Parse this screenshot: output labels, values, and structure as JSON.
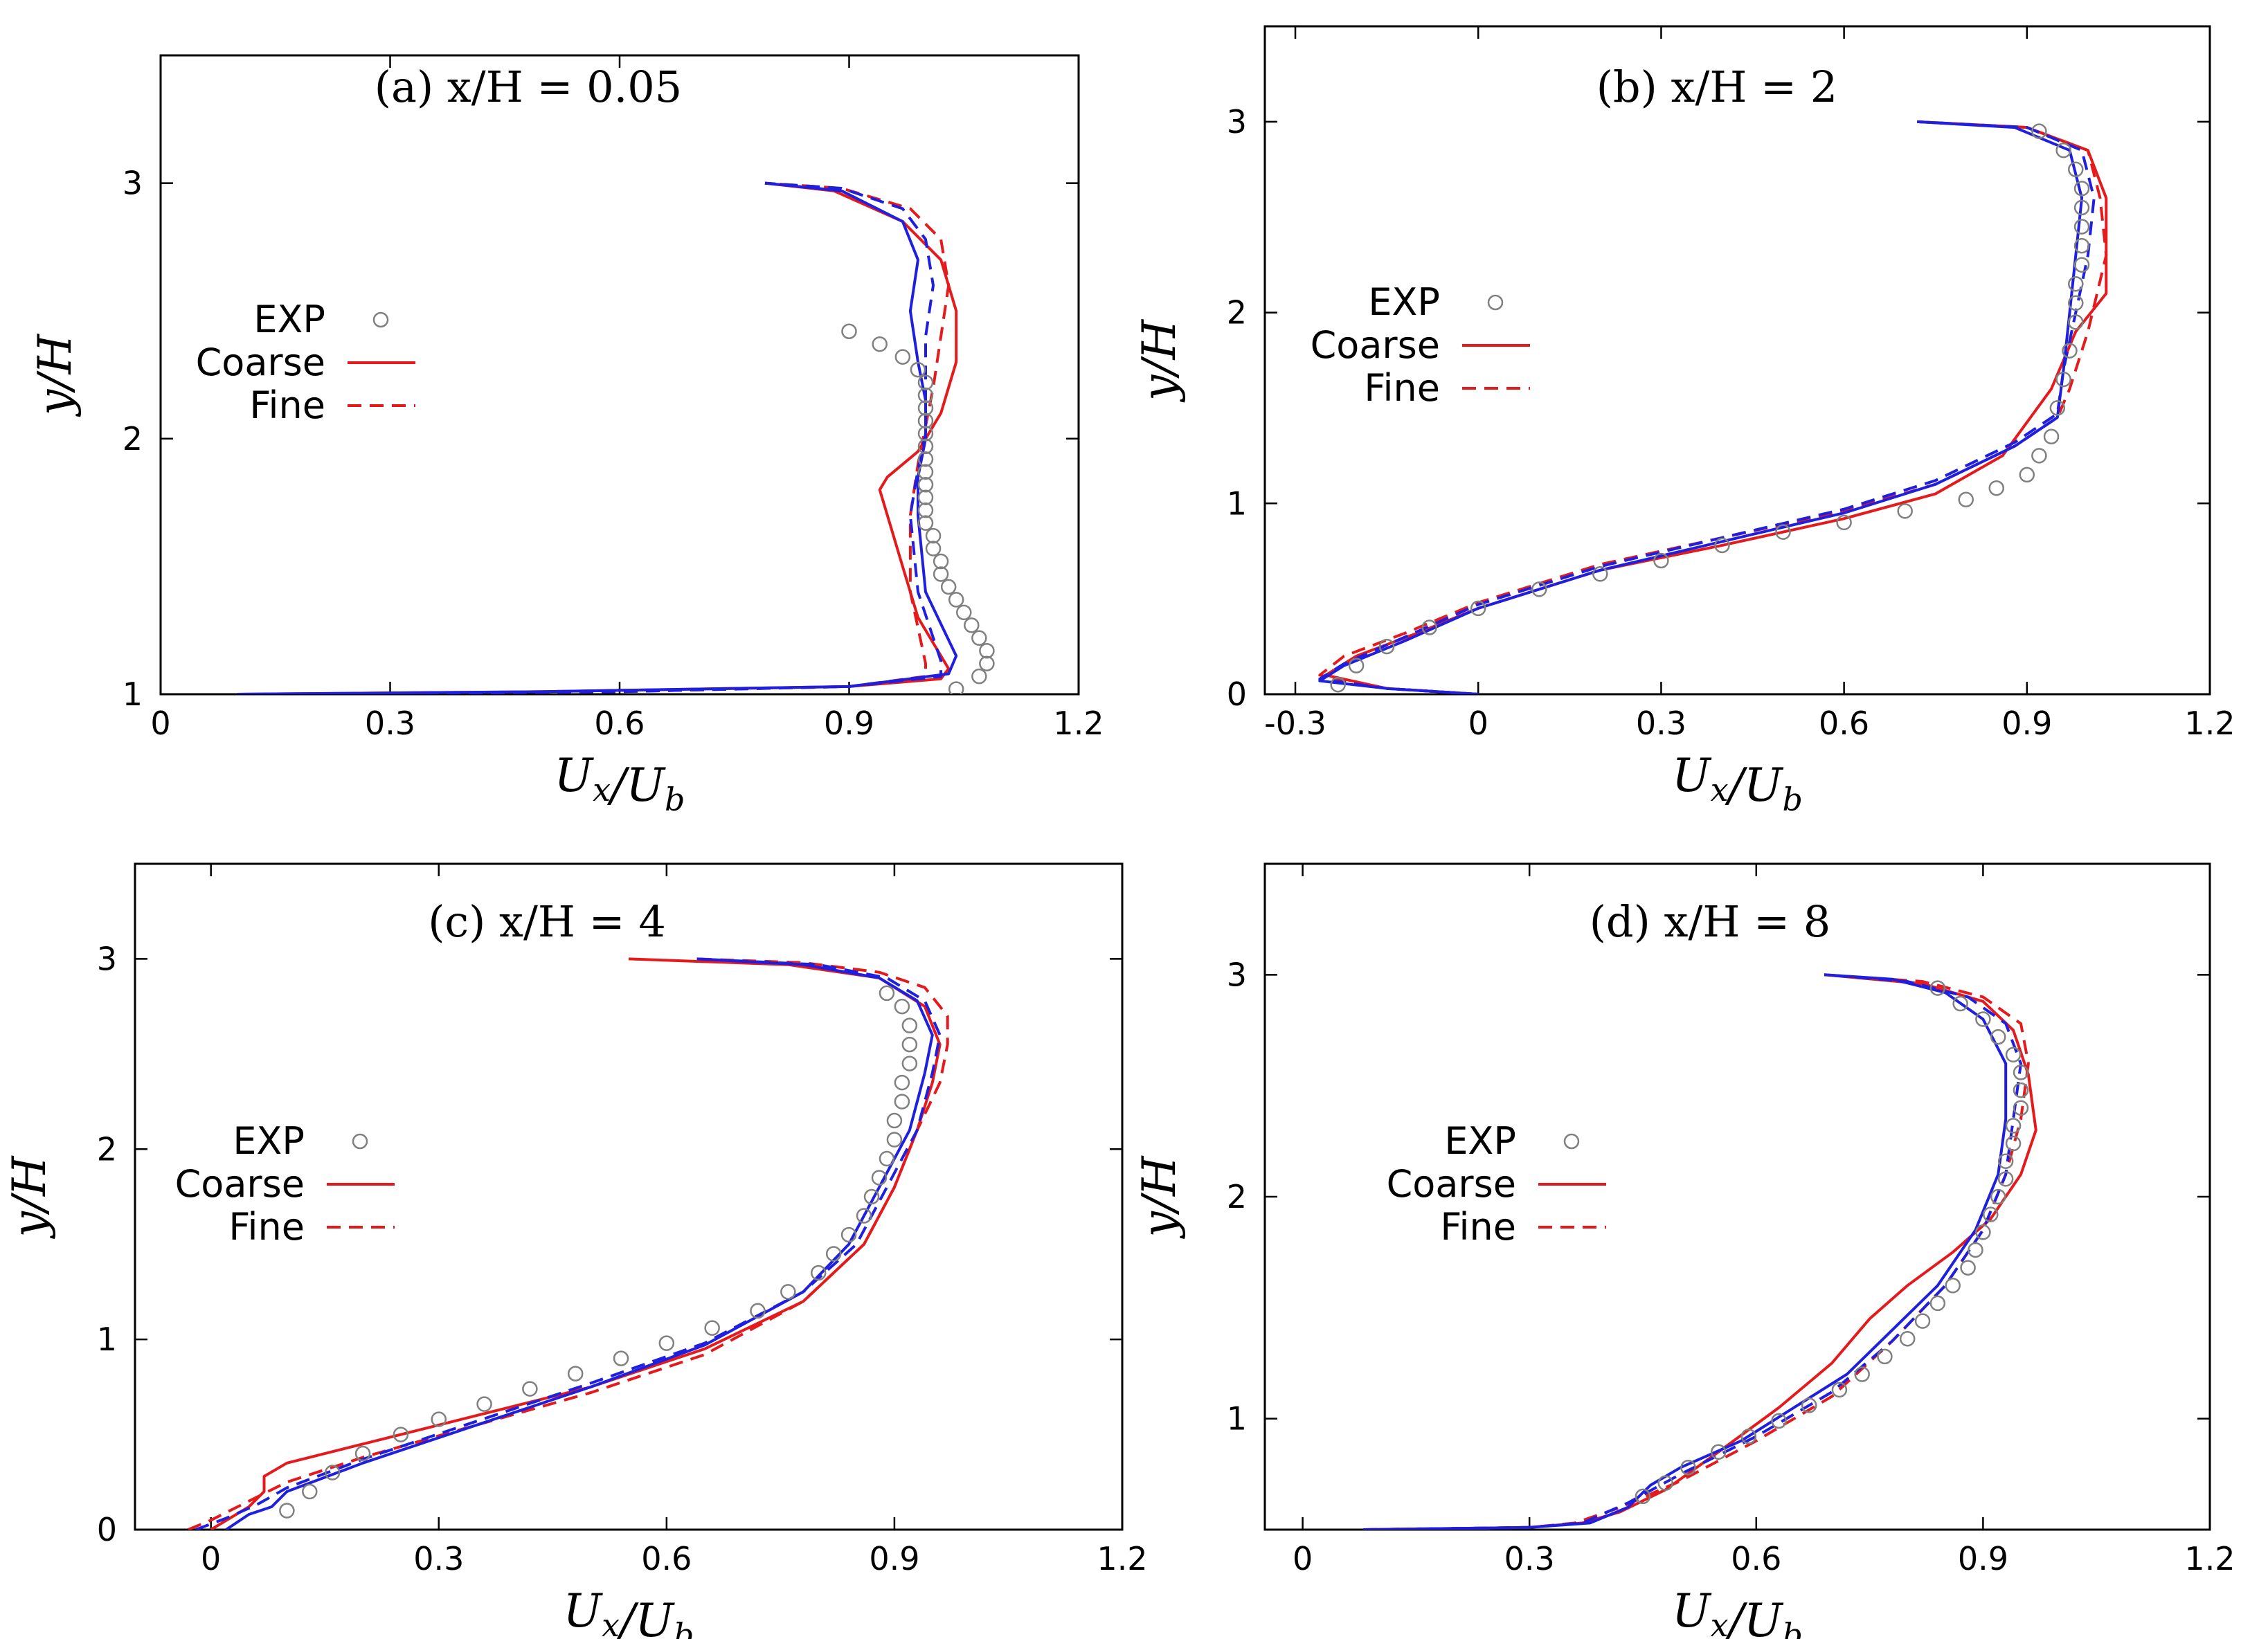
{
  "colors": {
    "exp": "#808080",
    "coarse": "#e41a1c",
    "fine": "#e41a1c",
    "blue": "#1f1fe0"
  },
  "legend": {
    "exp": "EXP",
    "coarse": "Coarse",
    "fine": "Fine"
  },
  "chart_data": [
    {
      "type": "line",
      "title": "(a) x/H = 0.05",
      "xlabel": "U_x/U_b",
      "ylabel": "y/H",
      "xlim": [
        0,
        1.2
      ],
      "ylim": [
        1,
        3.5
      ],
      "xticks": [
        0,
        0.3,
        0.6,
        0.9,
        1.2
      ],
      "xtick_labels": [
        "0",
        "0.3",
        "0.6",
        "0.9",
        "1.2"
      ],
      "yticks": [
        1,
        2,
        3
      ],
      "ytick_labels": [
        "1",
        "2",
        "3"
      ],
      "grid": false,
      "legend_position": "left",
      "exp": {
        "x": [
          1.04,
          1.07,
          1.08,
          1.08,
          1.07,
          1.06,
          1.05,
          1.04,
          1.03,
          1.02,
          1.02,
          1.01,
          1.01,
          1.0,
          1.0,
          1.0,
          1.0,
          1.0,
          1.0,
          1.0,
          1.0,
          1.0,
          1.0,
          1.0,
          1.0,
          0.99,
          0.97,
          0.94,
          0.9
        ],
        "y": [
          1.02,
          1.07,
          1.12,
          1.17,
          1.22,
          1.27,
          1.32,
          1.37,
          1.42,
          1.47,
          1.52,
          1.57,
          1.62,
          1.67,
          1.72,
          1.77,
          1.82,
          1.87,
          1.92,
          1.97,
          2.02,
          2.07,
          2.12,
          2.17,
          2.22,
          2.27,
          2.32,
          2.37,
          2.42
        ]
      },
      "series": [
        {
          "name": "Coarse",
          "style": "solid",
          "color": "red",
          "x": [
            0.1,
            0.5,
            0.9,
            1.02,
            1.03,
            0.99,
            0.97,
            0.95,
            0.94,
            0.95,
            0.99,
            1.02,
            1.04,
            1.04,
            1.02,
            0.97,
            0.88,
            0.79
          ],
          "y": [
            1.0,
            1.01,
            1.03,
            1.06,
            1.1,
            1.3,
            1.5,
            1.7,
            1.8,
            1.85,
            1.95,
            2.1,
            2.3,
            2.5,
            2.7,
            2.85,
            2.97,
            3.0
          ]
        },
        {
          "name": "Fine",
          "style": "dashed",
          "color": "red",
          "x": [
            0.2,
            0.6,
            0.9,
            1.0,
            1.0,
            0.98,
            0.98,
            0.99,
            1.0,
            1.01,
            1.02,
            1.03,
            1.02,
            0.98,
            0.89,
            0.79
          ],
          "y": [
            1.0,
            1.01,
            1.03,
            1.07,
            1.12,
            1.4,
            1.7,
            1.9,
            2.05,
            2.2,
            2.4,
            2.6,
            2.78,
            2.9,
            2.98,
            3.0
          ]
        },
        {
          "name": "",
          "style": "solid",
          "color": "blue",
          "x": [
            0.1,
            0.5,
            0.9,
            1.03,
            1.04,
            1.0,
            0.99,
            0.99,
            1.0,
            1.0,
            0.99,
            0.98,
            0.99,
            0.97,
            0.89,
            0.79
          ],
          "y": [
            1.0,
            1.01,
            1.03,
            1.08,
            1.15,
            1.4,
            1.7,
            1.85,
            2.0,
            2.15,
            2.3,
            2.5,
            2.7,
            2.85,
            2.97,
            3.0
          ]
        },
        {
          "name": "",
          "style": "dashed",
          "color": "blue",
          "x": [
            0.2,
            0.6,
            0.9,
            1.02,
            1.02,
            0.99,
            0.98,
            0.99,
            1.0,
            1.0,
            1.0,
            1.01,
            1.0,
            0.97,
            0.89,
            0.79
          ],
          "y": [
            1.0,
            1.01,
            1.03,
            1.07,
            1.13,
            1.4,
            1.7,
            1.88,
            2.02,
            2.2,
            2.4,
            2.6,
            2.78,
            2.9,
            2.98,
            3.0
          ]
        }
      ]
    },
    {
      "type": "line",
      "title": "(b) x/H = 2",
      "xlabel": "U_x/U_b",
      "ylabel": "y/H",
      "xlim": [
        -0.35,
        1.2
      ],
      "ylim": [
        0,
        3.5
      ],
      "xticks": [
        -0.3,
        0,
        0.3,
        0.6,
        0.9,
        1.2
      ],
      "xtick_labels": [
        "-0.3",
        "0",
        "0.3",
        "0.6",
        "0.9",
        "1.2"
      ],
      "yticks": [
        0,
        1,
        2,
        3
      ],
      "ytick_labels": [
        "0",
        "1",
        "2",
        "3"
      ],
      "grid": false,
      "legend_position": "top-left",
      "exp": {
        "x": [
          -0.23,
          -0.2,
          -0.15,
          -0.08,
          0.0,
          0.1,
          0.2,
          0.3,
          0.4,
          0.5,
          0.6,
          0.7,
          0.8,
          0.85,
          0.9,
          0.92,
          0.94,
          0.95,
          0.96,
          0.97,
          0.98,
          0.98,
          0.98,
          0.99,
          0.99,
          0.99,
          0.99,
          0.99,
          0.98,
          0.96,
          0.92
        ],
        "y": [
          0.05,
          0.15,
          0.25,
          0.35,
          0.45,
          0.55,
          0.63,
          0.7,
          0.78,
          0.85,
          0.9,
          0.96,
          1.02,
          1.08,
          1.15,
          1.25,
          1.35,
          1.5,
          1.65,
          1.8,
          1.95,
          2.05,
          2.15,
          2.25,
          2.35,
          2.45,
          2.55,
          2.65,
          2.75,
          2.85,
          2.95
        ]
      },
      "series": [
        {
          "name": "Coarse",
          "style": "solid",
          "color": "red",
          "x": [
            0.0,
            -0.15,
            -0.25,
            -0.2,
            -0.1,
            0.0,
            0.1,
            0.2,
            0.4,
            0.6,
            0.75,
            0.86,
            0.94,
            0.98,
            1.03,
            1.03,
            1.03,
            1.0,
            0.9,
            0.72
          ],
          "y": [
            0.0,
            0.03,
            0.1,
            0.2,
            0.32,
            0.45,
            0.55,
            0.65,
            0.78,
            0.92,
            1.05,
            1.25,
            1.6,
            1.9,
            2.1,
            2.3,
            2.6,
            2.85,
            2.97,
            3.0
          ]
        },
        {
          "name": "Fine",
          "style": "dashed",
          "color": "red",
          "x": [
            0.0,
            -0.15,
            -0.26,
            -0.22,
            -0.12,
            0.0,
            0.1,
            0.2,
            0.4,
            0.6,
            0.75,
            0.88,
            0.95,
            0.97,
            1.0,
            1.03,
            1.02,
            1.0,
            0.9,
            0.72
          ],
          "y": [
            0.0,
            0.03,
            0.1,
            0.2,
            0.32,
            0.48,
            0.58,
            0.68,
            0.82,
            0.96,
            1.1,
            1.3,
            1.45,
            1.6,
            1.9,
            2.3,
            2.6,
            2.85,
            2.97,
            3.0
          ]
        },
        {
          "name": "",
          "style": "solid",
          "color": "blue",
          "x": [
            0.0,
            -0.15,
            -0.26,
            -0.22,
            -0.12,
            0.0,
            0.1,
            0.2,
            0.4,
            0.6,
            0.75,
            0.88,
            0.95,
            0.96,
            0.97,
            0.98,
            0.99,
            0.97,
            0.88,
            0.72
          ],
          "y": [
            0.0,
            0.03,
            0.07,
            0.15,
            0.28,
            0.45,
            0.55,
            0.65,
            0.8,
            0.95,
            1.1,
            1.3,
            1.45,
            1.7,
            2.0,
            2.3,
            2.6,
            2.85,
            2.97,
            3.0
          ]
        },
        {
          "name": "",
          "style": "dashed",
          "color": "blue",
          "x": [
            0.0,
            -0.15,
            -0.26,
            -0.22,
            -0.12,
            0.0,
            0.1,
            0.2,
            0.4,
            0.6,
            0.75,
            0.88,
            0.95,
            0.96,
            0.98,
            1.0,
            1.01,
            0.99,
            0.9,
            0.72
          ],
          "y": [
            0.0,
            0.03,
            0.08,
            0.16,
            0.3,
            0.47,
            0.57,
            0.67,
            0.82,
            0.97,
            1.12,
            1.32,
            1.47,
            1.7,
            2.0,
            2.3,
            2.6,
            2.85,
            2.97,
            3.0
          ]
        }
      ]
    },
    {
      "type": "line",
      "title": "(c) x/H = 4",
      "xlabel": "U_x/U_b",
      "ylabel": "y/H",
      "xlim": [
        -0.1,
        1.2
      ],
      "ylim": [
        0,
        3.5
      ],
      "xticks": [
        0,
        0.3,
        0.6,
        0.9,
        1.2
      ],
      "xtick_labels": [
        "0",
        "0.3",
        "0.6",
        "0.9",
        "1.2"
      ],
      "yticks": [
        0,
        1,
        2,
        3
      ],
      "ytick_labels": [
        "0",
        "1",
        "2",
        "3"
      ],
      "grid": false,
      "legend_position": "left",
      "exp": {
        "x": [
          0.1,
          0.13,
          0.16,
          0.2,
          0.25,
          0.3,
          0.36,
          0.42,
          0.48,
          0.54,
          0.6,
          0.66,
          0.72,
          0.76,
          0.8,
          0.82,
          0.84,
          0.86,
          0.87,
          0.88,
          0.89,
          0.9,
          0.9,
          0.91,
          0.91,
          0.92,
          0.92,
          0.92,
          0.91,
          0.89
        ],
        "y": [
          0.1,
          0.2,
          0.3,
          0.4,
          0.5,
          0.58,
          0.66,
          0.74,
          0.82,
          0.9,
          0.98,
          1.06,
          1.15,
          1.25,
          1.35,
          1.45,
          1.55,
          1.65,
          1.75,
          1.85,
          1.95,
          2.05,
          2.15,
          2.25,
          2.35,
          2.45,
          2.55,
          2.65,
          2.75,
          2.82
        ]
      },
      "series": [
        {
          "name": "Coarse",
          "style": "solid",
          "color": "red",
          "x": [
            0.0,
            0.05,
            0.07,
            0.07,
            0.1,
            0.2,
            0.35,
            0.5,
            0.65,
            0.78,
            0.86,
            0.9,
            0.93,
            0.95,
            0.96,
            0.94,
            0.88,
            0.76,
            0.55
          ],
          "y": [
            0.0,
            0.12,
            0.2,
            0.28,
            0.35,
            0.45,
            0.6,
            0.75,
            0.95,
            1.2,
            1.5,
            1.8,
            2.1,
            2.35,
            2.55,
            2.75,
            2.9,
            2.97,
            3.0
          ]
        },
        {
          "name": "Fine",
          "style": "dashed",
          "color": "red",
          "x": [
            -0.03,
            0.0,
            0.05,
            0.1,
            0.2,
            0.35,
            0.5,
            0.65,
            0.78,
            0.86,
            0.9,
            0.93,
            0.96,
            0.97,
            0.97,
            0.94,
            0.88,
            0.78,
            0.64
          ],
          "y": [
            0.0,
            0.05,
            0.15,
            0.25,
            0.38,
            0.55,
            0.72,
            0.92,
            1.2,
            1.5,
            1.8,
            2.1,
            2.35,
            2.55,
            2.7,
            2.85,
            2.93,
            2.98,
            3.0
          ]
        },
        {
          "name": "",
          "style": "solid",
          "color": "blue",
          "x": [
            0.02,
            0.05,
            0.08,
            0.1,
            0.2,
            0.35,
            0.5,
            0.65,
            0.78,
            0.84,
            0.88,
            0.92,
            0.94,
            0.95,
            0.93,
            0.88,
            0.78,
            0.64
          ],
          "y": [
            0.0,
            0.08,
            0.12,
            0.2,
            0.35,
            0.55,
            0.75,
            0.97,
            1.25,
            1.5,
            1.8,
            2.1,
            2.4,
            2.6,
            2.78,
            2.9,
            2.97,
            3.0
          ]
        },
        {
          "name": "",
          "style": "dashed",
          "color": "blue",
          "x": [
            -0.02,
            0.02,
            0.06,
            0.1,
            0.2,
            0.35,
            0.5,
            0.65,
            0.78,
            0.85,
            0.89,
            0.93,
            0.95,
            0.96,
            0.94,
            0.89,
            0.8,
            0.64
          ],
          "y": [
            0.0,
            0.06,
            0.13,
            0.22,
            0.37,
            0.57,
            0.77,
            0.98,
            1.25,
            1.5,
            1.8,
            2.1,
            2.4,
            2.6,
            2.78,
            2.9,
            2.97,
            3.0
          ]
        }
      ]
    },
    {
      "type": "line",
      "title": "(d) x/H = 8",
      "xlabel": "U_x/U_b",
      "ylabel": "y/H",
      "xlim": [
        -0.05,
        1.2
      ],
      "ylim": [
        0.5,
        3.5
      ],
      "xticks": [
        0,
        0.3,
        0.6,
        0.9,
        1.2
      ],
      "xtick_labels": [
        "0",
        "0.3",
        "0.6",
        "0.9",
        "1.2"
      ],
      "yticks": [
        1,
        2,
        3
      ],
      "ytick_labels": [
        "1",
        "2",
        "3"
      ],
      "grid": false,
      "legend_position": "left",
      "exp": {
        "x": [
          0.45,
          0.48,
          0.51,
          0.55,
          0.59,
          0.63,
          0.67,
          0.71,
          0.74,
          0.77,
          0.8,
          0.82,
          0.84,
          0.86,
          0.88,
          0.89,
          0.9,
          0.91,
          0.92,
          0.93,
          0.93,
          0.94,
          0.94,
          0.95,
          0.95,
          0.95,
          0.94,
          0.92,
          0.9,
          0.87,
          0.84
        ],
        "y": [
          0.65,
          0.71,
          0.78,
          0.85,
          0.92,
          0.99,
          1.06,
          1.13,
          1.2,
          1.28,
          1.36,
          1.44,
          1.52,
          1.6,
          1.68,
          1.76,
          1.84,
          1.92,
          2.0,
          2.08,
          2.16,
          2.24,
          2.32,
          2.4,
          2.48,
          2.56,
          2.64,
          2.72,
          2.8,
          2.87,
          2.94
        ]
      },
      "series": [
        {
          "name": "Coarse",
          "style": "solid",
          "color": "red",
          "x": [
            0.08,
            0.3,
            0.37,
            0.42,
            0.48,
            0.55,
            0.63,
            0.7,
            0.75,
            0.8,
            0.86,
            0.91,
            0.95,
            0.97,
            0.96,
            0.94,
            0.9,
            0.82,
            0.69
          ],
          "y": [
            0.5,
            0.51,
            0.53,
            0.58,
            0.68,
            0.85,
            1.05,
            1.25,
            1.45,
            1.6,
            1.75,
            1.9,
            2.1,
            2.3,
            2.55,
            2.75,
            2.88,
            2.96,
            3.0
          ]
        },
        {
          "name": "Fine",
          "style": "dashed",
          "color": "red",
          "x": [
            0.08,
            0.3,
            0.36,
            0.42,
            0.5,
            0.6,
            0.7,
            0.78,
            0.85,
            0.9,
            0.93,
            0.95,
            0.96,
            0.95,
            0.9,
            0.82,
            0.69
          ],
          "y": [
            0.5,
            0.51,
            0.53,
            0.6,
            0.72,
            0.9,
            1.1,
            1.35,
            1.6,
            1.85,
            2.1,
            2.35,
            2.6,
            2.78,
            2.9,
            2.97,
            3.0
          ]
        },
        {
          "name": "",
          "style": "solid",
          "color": "blue",
          "x": [
            0.08,
            0.3,
            0.38,
            0.43,
            0.46,
            0.5,
            0.58,
            0.65,
            0.72,
            0.78,
            0.84,
            0.89,
            0.92,
            0.93,
            0.93,
            0.9,
            0.85,
            0.78,
            0.69
          ],
          "y": [
            0.5,
            0.51,
            0.53,
            0.6,
            0.7,
            0.78,
            0.9,
            1.05,
            1.2,
            1.4,
            1.6,
            1.85,
            2.1,
            2.35,
            2.6,
            2.8,
            2.92,
            2.98,
            3.0
          ]
        },
        {
          "name": "",
          "style": "dashed",
          "color": "blue",
          "x": [
            0.08,
            0.3,
            0.37,
            0.43,
            0.5,
            0.6,
            0.7,
            0.78,
            0.85,
            0.9,
            0.93,
            0.94,
            0.95,
            0.93,
            0.88,
            0.8,
            0.69
          ],
          "y": [
            0.5,
            0.51,
            0.53,
            0.62,
            0.75,
            0.92,
            1.12,
            1.35,
            1.6,
            1.85,
            2.1,
            2.35,
            2.6,
            2.78,
            2.9,
            2.97,
            3.0
          ]
        }
      ]
    }
  ]
}
